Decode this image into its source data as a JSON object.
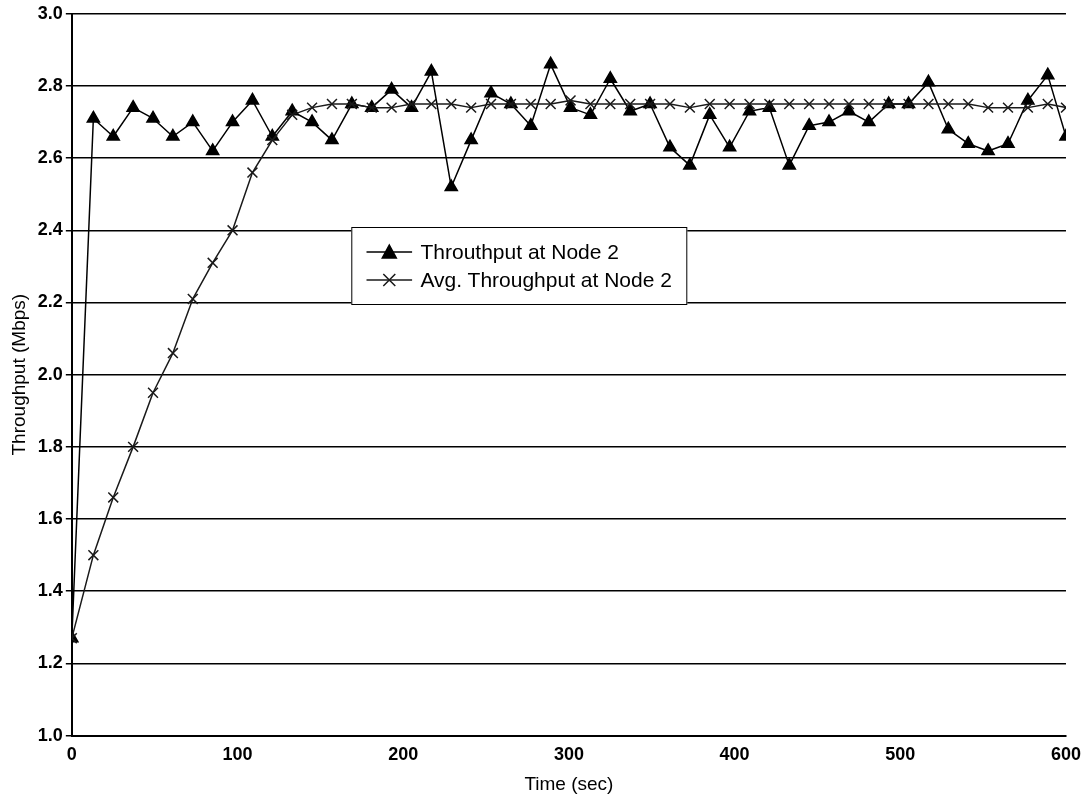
{
  "chart_data": {
    "type": "line",
    "xlabel": "Time (sec)",
    "ylabel": "Throughput (Mbps)",
    "x": [
      0,
      13,
      25,
      37,
      49,
      61,
      73,
      85,
      97,
      109,
      121,
      133,
      145,
      157,
      169,
      181,
      193,
      205,
      217,
      229,
      241,
      253,
      265,
      277,
      289,
      301,
      313,
      325,
      337,
      349,
      361,
      373,
      385,
      397,
      409,
      421,
      433,
      445,
      457,
      469,
      481,
      493,
      505,
      517,
      529,
      541,
      553,
      565,
      577,
      589,
      600
    ],
    "series": [
      {
        "name": "Throuthput at Node 2",
        "color": "#000000",
        "marker": "triangle",
        "values": [
          1.27,
          2.71,
          2.66,
          2.74,
          2.71,
          2.66,
          2.7,
          2.62,
          2.7,
          2.76,
          2.66,
          2.73,
          2.7,
          2.65,
          2.75,
          2.74,
          2.79,
          2.74,
          2.84,
          2.52,
          2.65,
          2.78,
          2.75,
          2.69,
          2.86,
          2.74,
          2.72,
          2.82,
          2.73,
          2.75,
          2.63,
          2.58,
          2.72,
          2.63,
          2.73,
          2.74,
          2.58,
          2.69,
          2.7,
          2.73,
          2.7,
          2.75,
          2.75,
          2.81,
          2.68,
          2.64,
          2.62,
          2.64,
          2.76,
          2.83,
          2.66
        ]
      },
      {
        "name": "Avg. Throughput at Node 2",
        "color": "#1a1a1a",
        "marker": "cross",
        "values": [
          1.27,
          1.5,
          1.66,
          1.8,
          1.95,
          2.06,
          2.21,
          2.31,
          2.4,
          2.56,
          2.65,
          2.72,
          2.74,
          2.75,
          2.75,
          2.74,
          2.74,
          2.75,
          2.75,
          2.75,
          2.74,
          2.75,
          2.75,
          2.75,
          2.75,
          2.76,
          2.75,
          2.75,
          2.75,
          2.75,
          2.75,
          2.74,
          2.75,
          2.75,
          2.75,
          2.75,
          2.75,
          2.75,
          2.75,
          2.75,
          2.75,
          2.75,
          2.75,
          2.75,
          2.75,
          2.75,
          2.74,
          2.74,
          2.74,
          2.75,
          2.74
        ]
      }
    ],
    "xlim": [
      0,
      600
    ],
    "xticks": [
      0,
      100,
      200,
      300,
      400,
      500,
      600
    ],
    "ylim": [
      1,
      3
    ],
    "yticks": [
      {
        "value": 1,
        "label": "1.0"
      },
      {
        "value": 1.2,
        "label": "1.2"
      },
      {
        "value": 1.4,
        "label": "1.4"
      },
      {
        "value": 1.6,
        "label": "1.6"
      },
      {
        "value": 1.8,
        "label": "1.8"
      },
      {
        "value": 2,
        "label": "2.0"
      },
      {
        "value": 2.2,
        "label": "2.2"
      },
      {
        "value": 2.4,
        "label": "2.4"
      },
      {
        "value": 2.6,
        "label": "2.6"
      },
      {
        "value": 2.8,
        "label": "2.8"
      },
      {
        "value": 3,
        "label": "3.0"
      }
    ],
    "grid": "y",
    "line_style": "solid",
    "legend": "center"
  }
}
